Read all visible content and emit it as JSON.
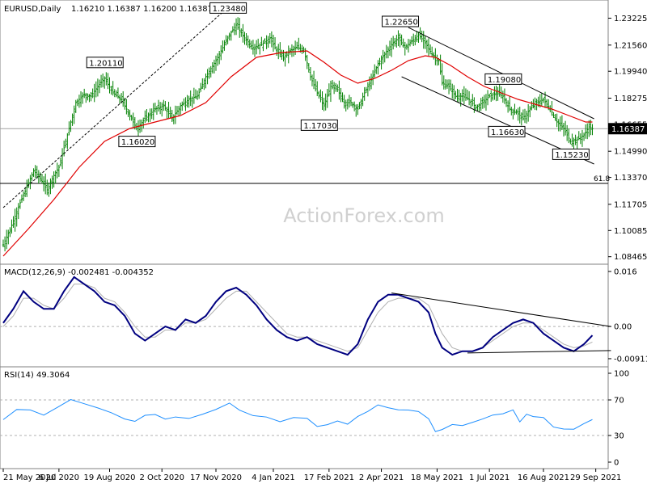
{
  "chart_data": [
    {
      "type": "candlestick",
      "title": "EURUSD,Daily",
      "ohlc": "1.16210 1.16387 1.16200 1.16387",
      "watermark": "ActionForex.com",
      "current_price": "1.16387",
      "ylim": [
        1.0825,
        1.2395
      ],
      "y_ticks": [
        "1.23225",
        "1.21560",
        "1.19940",
        "1.18275",
        "1.16655",
        "1.14990",
        "1.13370",
        "1.11705",
        "1.10085",
        "1.08465"
      ],
      "level_label": "61.8",
      "level_value": 1.13,
      "x_ticks": [
        "21 May 2020",
        "6 Jul 2020",
        "19 Aug 2020",
        "2 Oct 2020",
        "17 Nov 2020",
        "4 Jan 2021",
        "17 Feb 2021",
        "2 Apr 2021",
        "18 May 2021",
        "1 Jul 2021",
        "16 Aug 2021",
        "29 Sep 2021"
      ],
      "x_tick_index": [
        0,
        33,
        63,
        94,
        126,
        160,
        193,
        224,
        257,
        288,
        320,
        351
      ],
      "annotations": [
        {
          "text": "1.20110",
          "index": 60,
          "value": 1.2011
        },
        {
          "text": "1.16020",
          "index": 79,
          "value": 1.1602
        },
        {
          "text": "1.23480",
          "index": 133,
          "value": 1.2348
        },
        {
          "text": "1.17030",
          "index": 187,
          "value": 1.1703
        },
        {
          "text": "1.22650",
          "index": 235,
          "value": 1.2265
        },
        {
          "text": "1.19080",
          "index": 296,
          "value": 1.1908
        },
        {
          "text": "1.16630",
          "index": 298,
          "value": 1.1663
        },
        {
          "text": "1.15230",
          "index": 336,
          "value": 1.1523
        }
      ],
      "close_path": [
        [
          0,
          1.092
        ],
        [
          5,
          1.104
        ],
        [
          10,
          1.118
        ],
        [
          15,
          1.13
        ],
        [
          18,
          1.138
        ],
        [
          22,
          1.133
        ],
        [
          26,
          1.126
        ],
        [
          30,
          1.135
        ],
        [
          33,
          1.14
        ],
        [
          38,
          1.16
        ],
        [
          43,
          1.18
        ],
        [
          48,
          1.185
        ],
        [
          52,
          1.184
        ],
        [
          56,
          1.19
        ],
        [
          60,
          1.195
        ],
        [
          65,
          1.186
        ],
        [
          70,
          1.182
        ],
        [
          75,
          1.172
        ],
        [
          79,
          1.164
        ],
        [
          84,
          1.17
        ],
        [
          90,
          1.176
        ],
        [
          95,
          1.178
        ],
        [
          100,
          1.17
        ],
        [
          105,
          1.178
        ],
        [
          110,
          1.182
        ],
        [
          115,
          1.184
        ],
        [
          120,
          1.196
        ],
        [
          126,
          1.206
        ],
        [
          130,
          1.214
        ],
        [
          134,
          1.222
        ],
        [
          138,
          1.228
        ],
        [
          143,
          1.22
        ],
        [
          148,
          1.214
        ],
        [
          153,
          1.216
        ],
        [
          158,
          1.22
        ],
        [
          162,
          1.212
        ],
        [
          166,
          1.208
        ],
        [
          170,
          1.212
        ],
        [
          174,
          1.214
        ],
        [
          178,
          1.213
        ],
        [
          182,
          1.196
        ],
        [
          186,
          1.186
        ],
        [
          190,
          1.178
        ],
        [
          194,
          1.19
        ],
        [
          198,
          1.188
        ],
        [
          202,
          1.18
        ],
        [
          206,
          1.18
        ],
        [
          210,
          1.176
        ],
        [
          214,
          1.186
        ],
        [
          218,
          1.194
        ],
        [
          222,
          1.204
        ],
        [
          226,
          1.21
        ],
        [
          230,
          1.216
        ],
        [
          234,
          1.22
        ],
        [
          238,
          1.214
        ],
        [
          242,
          1.218
        ],
        [
          246,
          1.222
        ],
        [
          250,
          1.217
        ],
        [
          254,
          1.21
        ],
        [
          258,
          1.206
        ],
        [
          260,
          1.192
        ],
        [
          264,
          1.19
        ],
        [
          268,
          1.184
        ],
        [
          272,
          1.184
        ],
        [
          276,
          1.182
        ],
        [
          280,
          1.177
        ],
        [
          284,
          1.18
        ],
        [
          288,
          1.184
        ],
        [
          292,
          1.186
        ],
        [
          296,
          1.184
        ],
        [
          300,
          1.176
        ],
        [
          304,
          1.174
        ],
        [
          308,
          1.17
        ],
        [
          312,
          1.176
        ],
        [
          316,
          1.18
        ],
        [
          320,
          1.182
        ],
        [
          324,
          1.176
        ],
        [
          328,
          1.168
        ],
        [
          332,
          1.164
        ],
        [
          336,
          1.156
        ],
        [
          340,
          1.157
        ],
        [
          344,
          1.16
        ],
        [
          347,
          1.165
        ],
        [
          349,
          1.1639
        ]
      ],
      "ma_path": [
        [
          0,
          1.085
        ],
        [
          15,
          1.102
        ],
        [
          30,
          1.12
        ],
        [
          45,
          1.14
        ],
        [
          60,
          1.156
        ],
        [
          75,
          1.164
        ],
        [
          90,
          1.168
        ],
        [
          105,
          1.172
        ],
        [
          120,
          1.18
        ],
        [
          135,
          1.196
        ],
        [
          150,
          1.208
        ],
        [
          165,
          1.211
        ],
        [
          180,
          1.212
        ],
        [
          190,
          1.205
        ],
        [
          200,
          1.197
        ],
        [
          210,
          1.192
        ],
        [
          220,
          1.195
        ],
        [
          230,
          1.2
        ],
        [
          240,
          1.206
        ],
        [
          250,
          1.209
        ],
        [
          256,
          1.208
        ],
        [
          265,
          1.203
        ],
        [
          275,
          1.196
        ],
        [
          285,
          1.19
        ],
        [
          295,
          1.186
        ],
        [
          305,
          1.182
        ],
        [
          315,
          1.179
        ],
        [
          325,
          1.176
        ],
        [
          335,
          1.172
        ],
        [
          345,
          1.168
        ],
        [
          349,
          1.168
        ]
      ],
      "trend_lines": [
        [
          [
            0,
            1.115
          ],
          [
            130,
            1.236
          ]
        ],
        [
          [
            240,
            1.2265
          ],
          [
            350,
            1.17
          ]
        ],
        [
          [
            236,
            1.196
          ],
          [
            350,
            1.142
          ]
        ]
      ],
      "colors": {
        "candle": "#008000",
        "ma": "#e00000",
        "trend": "#000000"
      }
    },
    {
      "type": "line",
      "title": "MACD(12,26,9) -0.002481 -0.004352",
      "ylim": [
        -0.0105,
        0.0165
      ],
      "y_ticks": [
        "0.016",
        "0.00",
        "-0.009116"
      ],
      "x_ticks": [],
      "macd_path": [
        [
          0,
          0.001
        ],
        [
          6,
          0.005
        ],
        [
          12,
          0.01
        ],
        [
          18,
          0.007
        ],
        [
          24,
          0.005
        ],
        [
          30,
          0.005
        ],
        [
          36,
          0.01
        ],
        [
          42,
          0.014
        ],
        [
          48,
          0.012
        ],
        [
          54,
          0.01
        ],
        [
          60,
          0.007
        ],
        [
          66,
          0.006
        ],
        [
          72,
          0.003
        ],
        [
          78,
          -0.002
        ],
        [
          84,
          -0.004
        ],
        [
          90,
          -0.002
        ],
        [
          96,
          0.0
        ],
        [
          102,
          -0.001
        ],
        [
          108,
          0.002
        ],
        [
          114,
          0.001
        ],
        [
          120,
          0.003
        ],
        [
          126,
          0.007
        ],
        [
          132,
          0.01
        ],
        [
          138,
          0.011
        ],
        [
          144,
          0.009
        ],
        [
          150,
          0.006
        ],
        [
          156,
          0.002
        ],
        [
          162,
          -0.001
        ],
        [
          168,
          -0.003
        ],
        [
          174,
          -0.004
        ],
        [
          180,
          -0.003
        ],
        [
          186,
          -0.005
        ],
        [
          192,
          -0.006
        ],
        [
          198,
          -0.007
        ],
        [
          204,
          -0.008
        ],
        [
          210,
          -0.005
        ],
        [
          216,
          0.002
        ],
        [
          222,
          0.007
        ],
        [
          228,
          0.009
        ],
        [
          234,
          0.009
        ],
        [
          240,
          0.008
        ],
        [
          246,
          0.007
        ],
        [
          252,
          0.004
        ],
        [
          256,
          -0.002
        ],
        [
          260,
          -0.006
        ],
        [
          266,
          -0.008
        ],
        [
          272,
          -0.007
        ],
        [
          278,
          -0.007
        ],
        [
          284,
          -0.006
        ],
        [
          290,
          -0.003
        ],
        [
          296,
          -0.001
        ],
        [
          302,
          0.001
        ],
        [
          308,
          0.002
        ],
        [
          314,
          0.001
        ],
        [
          320,
          -0.002
        ],
        [
          326,
          -0.004
        ],
        [
          332,
          -0.006
        ],
        [
          338,
          -0.007
        ],
        [
          344,
          -0.005
        ],
        [
          349,
          -0.0025
        ]
      ],
      "signal_path": [
        [
          0,
          0.0
        ],
        [
          6,
          0.003
        ],
        [
          12,
          0.008
        ],
        [
          18,
          0.008
        ],
        [
          24,
          0.006
        ],
        [
          30,
          0.005
        ],
        [
          36,
          0.008
        ],
        [
          42,
          0.012
        ],
        [
          48,
          0.012
        ],
        [
          54,
          0.011
        ],
        [
          60,
          0.008
        ],
        [
          66,
          0.007
        ],
        [
          72,
          0.004
        ],
        [
          78,
          0.0
        ],
        [
          84,
          -0.003
        ],
        [
          90,
          -0.003
        ],
        [
          96,
          -0.001
        ],
        [
          102,
          -0.001
        ],
        [
          108,
          0.001
        ],
        [
          114,
          0.001
        ],
        [
          120,
          0.002
        ],
        [
          126,
          0.005
        ],
        [
          132,
          0.008
        ],
        [
          138,
          0.01
        ],
        [
          144,
          0.01
        ],
        [
          150,
          0.007
        ],
        [
          156,
          0.004
        ],
        [
          162,
          0.001
        ],
        [
          168,
          -0.002
        ],
        [
          174,
          -0.003
        ],
        [
          180,
          -0.003
        ],
        [
          186,
          -0.004
        ],
        [
          192,
          -0.005
        ],
        [
          198,
          -0.006
        ],
        [
          204,
          -0.007
        ],
        [
          210,
          -0.006
        ],
        [
          216,
          -0.001
        ],
        [
          222,
          0.004
        ],
        [
          228,
          0.007
        ],
        [
          234,
          0.008
        ],
        [
          240,
          0.008
        ],
        [
          246,
          0.008
        ],
        [
          252,
          0.006
        ],
        [
          256,
          0.002
        ],
        [
          260,
          -0.002
        ],
        [
          266,
          -0.006
        ],
        [
          272,
          -0.007
        ],
        [
          278,
          -0.007
        ],
        [
          284,
          -0.006
        ],
        [
          290,
          -0.004
        ],
        [
          296,
          -0.002
        ],
        [
          302,
          0.0
        ],
        [
          308,
          0.001
        ],
        [
          314,
          0.001
        ],
        [
          320,
          -0.001
        ],
        [
          326,
          -0.003
        ],
        [
          332,
          -0.005
        ],
        [
          338,
          -0.006
        ],
        [
          344,
          -0.0055
        ],
        [
          349,
          -0.0044
        ]
      ],
      "trend_lines": [
        [
          [
            230,
            0.0095
          ],
          [
            360,
            0.0
          ]
        ],
        [
          [
            275,
            -0.0075
          ],
          [
            360,
            -0.0068
          ]
        ]
      ],
      "colors": {
        "macd": "#000080",
        "signal": "#b0b0b0",
        "trend": "#000000"
      }
    },
    {
      "type": "line",
      "title": "RSI(14) 49.3064",
      "ylim": [
        0,
        100
      ],
      "y_ticks": [
        "100",
        "70",
        "30",
        "0"
      ],
      "levels": [
        70,
        30
      ],
      "x_ticks": [],
      "rsi_path": [
        [
          0,
          47
        ],
        [
          8,
          58
        ],
        [
          16,
          60
        ],
        [
          24,
          52
        ],
        [
          32,
          62
        ],
        [
          40,
          70
        ],
        [
          48,
          65
        ],
        [
          56,
          62
        ],
        [
          64,
          55
        ],
        [
          72,
          50
        ],
        [
          78,
          45
        ],
        [
          84,
          52
        ],
        [
          90,
          55
        ],
        [
          96,
          48
        ],
        [
          102,
          52
        ],
        [
          110,
          50
        ],
        [
          118,
          55
        ],
        [
          126,
          60
        ],
        [
          134,
          65
        ],
        [
          140,
          58
        ],
        [
          148,
          52
        ],
        [
          156,
          50
        ],
        [
          164,
          45
        ],
        [
          172,
          50
        ],
        [
          180,
          48
        ],
        [
          186,
          40
        ],
        [
          192,
          42
        ],
        [
          198,
          45
        ],
        [
          204,
          42
        ],
        [
          210,
          50
        ],
        [
          216,
          58
        ],
        [
          222,
          64
        ],
        [
          228,
          62
        ],
        [
          234,
          60
        ],
        [
          240,
          58
        ],
        [
          246,
          56
        ],
        [
          252,
          50
        ],
        [
          256,
          35
        ],
        [
          260,
          38
        ],
        [
          266,
          42
        ],
        [
          272,
          40
        ],
        [
          278,
          45
        ],
        [
          284,
          50
        ],
        [
          290,
          52
        ],
        [
          296,
          55
        ],
        [
          302,
          58
        ],
        [
          306,
          45
        ],
        [
          310,
          55
        ],
        [
          314,
          52
        ],
        [
          320,
          50
        ],
        [
          326,
          40
        ],
        [
          332,
          36
        ],
        [
          338,
          38
        ],
        [
          344,
          44
        ],
        [
          349,
          49
        ]
      ],
      "colors": {
        "rsi": "#1e8fff",
        "level": "#000000"
      }
    }
  ]
}
